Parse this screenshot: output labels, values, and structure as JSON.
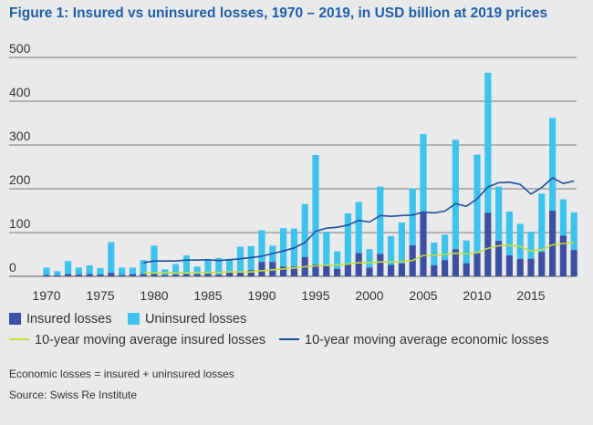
{
  "title": "Figure 1: Insured vs uninsured losses, 1970 – 2019, in USD billion at 2019 prices",
  "legend": {
    "insured": "Insured losses",
    "uninsured": "Uninsured losses",
    "ma_insured": "10-year moving average insured losses",
    "ma_economic": "10-year moving average economic losses"
  },
  "notes": {
    "definition": "Economic losses = insured + uninsured losses",
    "source": "Source: Swiss Re Institute"
  },
  "colors": {
    "insured": "#3d4fa3",
    "uninsured": "#3dc3ee",
    "ma_insured": "#c8dc3c",
    "ma_economic": "#1f4e9c",
    "gridline": "#555555",
    "title": "#1f5fa8"
  },
  "chart_data": {
    "type": "bar",
    "stacked": true,
    "ylim": [
      0,
      500
    ],
    "yticks": [
      0,
      100,
      200,
      300,
      400,
      500
    ],
    "xtick_labels": [
      "1970",
      "1975",
      "1980",
      "1985",
      "1990",
      "1995",
      "2000",
      "2005",
      "2010",
      "2015"
    ],
    "grid": "horizontal",
    "legend_position": "bottom",
    "categories": [
      1970,
      1971,
      1972,
      1973,
      1974,
      1975,
      1976,
      1977,
      1978,
      1979,
      1980,
      1981,
      1982,
      1983,
      1984,
      1985,
      1986,
      1987,
      1988,
      1989,
      1990,
      1991,
      1992,
      1993,
      1994,
      1995,
      1996,
      1997,
      1998,
      1999,
      2000,
      2001,
      2002,
      2003,
      2004,
      2005,
      2006,
      2007,
      2008,
      2009,
      2010,
      2011,
      2012,
      2013,
      2014,
      2015,
      2016,
      2017,
      2018,
      2019
    ],
    "series": [
      {
        "name": "Insured losses",
        "kind": "bar",
        "values": [
          3,
          2,
          5,
          4,
          5,
          4,
          8,
          3,
          5,
          5,
          5,
          3,
          4,
          5,
          5,
          6,
          4,
          10,
          8,
          14,
          33,
          33,
          22,
          22,
          44,
          27,
          25,
          17,
          27,
          53,
          20,
          51,
          26,
          30,
          71,
          145,
          25,
          37,
          62,
          30,
          53,
          145,
          81,
          48,
          40,
          40,
          56,
          150,
          93,
          60
        ]
      },
      {
        "name": "Uninsured losses",
        "kind": "bar",
        "values": [
          17,
          10,
          30,
          16,
          20,
          15,
          70,
          17,
          15,
          32,
          65,
          13,
          24,
          43,
          17,
          32,
          38,
          30,
          60,
          55,
          72,
          37,
          88,
          87,
          121,
          250,
          77,
          40,
          117,
          117,
          42,
          154,
          66,
          93,
          130,
          180,
          52,
          58,
          250,
          52,
          225,
          320,
          124,
          100,
          80,
          62,
          133,
          212,
          83,
          86
        ]
      },
      {
        "name": "10-year moving average insured losses",
        "kind": "line",
        "values": [
          null,
          null,
          null,
          null,
          null,
          null,
          null,
          null,
          null,
          8,
          8,
          8,
          8,
          8,
          9,
          9,
          9,
          10,
          10,
          10,
          13,
          15,
          17,
          19,
          22,
          24,
          25,
          26,
          28,
          31,
          31,
          33,
          33,
          34,
          36,
          48,
          48,
          50,
          53,
          51,
          54,
          64,
          70,
          71,
          68,
          58,
          61,
          72,
          75,
          77
        ]
      },
      {
        "name": "10-year moving average economic losses",
        "kind": "line",
        "values": [
          null,
          null,
          null,
          null,
          null,
          null,
          null,
          null,
          null,
          31,
          35,
          35,
          35,
          37,
          37,
          38,
          36,
          38,
          40,
          43,
          46,
          52,
          58,
          65,
          77,
          103,
          110,
          112,
          117,
          128,
          124,
          139,
          137,
          139,
          140,
          147,
          145,
          149,
          166,
          160,
          177,
          204,
          214,
          215,
          210,
          188,
          203,
          225,
          212,
          218
        ]
      }
    ]
  }
}
